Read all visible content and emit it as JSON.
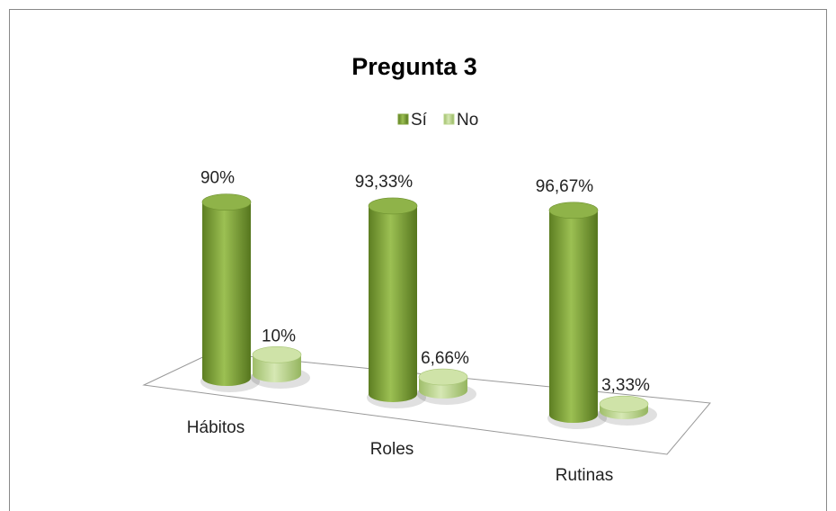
{
  "chart_data": {
    "type": "bar3d",
    "title": "Pregunta 3",
    "categories": [
      "Hábitos",
      "Roles",
      "Rutinas"
    ],
    "series": [
      {
        "name": "Sí",
        "color": "#7fa23a",
        "values": [
          90,
          93.33,
          96.67
        ],
        "value_labels": [
          "90%",
          "93,33%",
          "96,67%"
        ]
      },
      {
        "name": "No",
        "color": "#b9d48a",
        "values": [
          10,
          6.66,
          3.33
        ],
        "value_labels": [
          "10%",
          "6,66%",
          "3,33%"
        ]
      }
    ],
    "legend": "top"
  }
}
